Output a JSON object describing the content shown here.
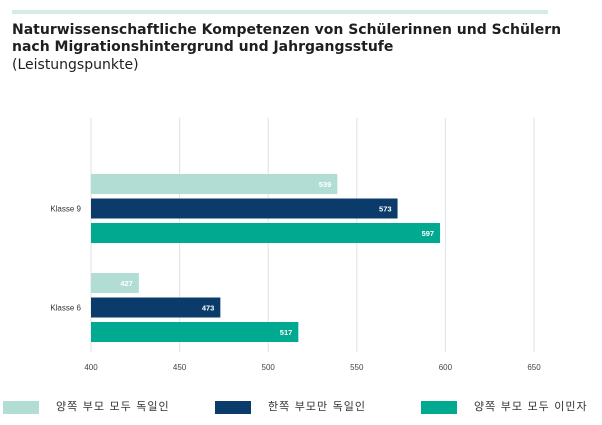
{
  "chart_data": {
    "type": "bar",
    "orientation": "horizontal",
    "title": "Naturwissenschaftliche Kompetenzen von Schülerinnen und Schülern",
    "title_line2": "nach Migrationshintergrund und Jahrgangsstufe",
    "subtitle": "(Leistungspunkte)",
    "categories": [
      "Klasse 9",
      "Klasse 6"
    ],
    "series": [
      {
        "name": "양쪽 부모 모두 독일인",
        "color": "#b2ddd4",
        "values": [
          539,
          427
        ]
      },
      {
        "name": "한쪽 부모만 독일인",
        "color": "#0b3b6b",
        "values": [
          573,
          473
        ]
      },
      {
        "name": "양쪽 부모 모두 이민자",
        "color": "#00a98f",
        "values": [
          597,
          517
        ]
      }
    ],
    "xlim": [
      400,
      650
    ],
    "xticks": [
      400,
      450,
      500,
      550,
      600,
      650
    ],
    "grid": true,
    "legend_position": "bottom"
  }
}
